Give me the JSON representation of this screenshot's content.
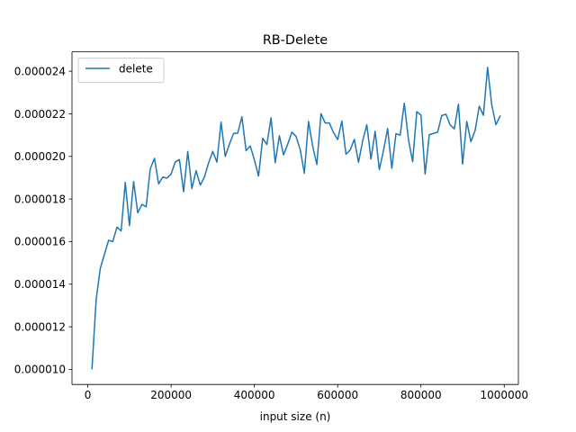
{
  "chart_data": {
    "type": "line",
    "title": "RB-Delete",
    "xlabel": "input size (n)",
    "ylabel": "",
    "xlim": [
      -38000,
      1034000
    ],
    "ylim": [
      9.29e-06,
      2.491e-05
    ],
    "x_ticks": [
      0,
      200000,
      400000,
      600000,
      800000,
      1000000
    ],
    "x_tick_labels": [
      "0",
      "200000",
      "400000",
      "600000",
      "800000",
      "1000000"
    ],
    "y_ticks": [
      1e-05,
      1.2e-05,
      1.4e-05,
      1.6e-05,
      1.8e-05,
      2e-05,
      2.2e-05,
      2.4e-05
    ],
    "y_tick_labels": [
      "0.000010",
      "0.000012",
      "0.000014",
      "0.000016",
      "0.000018",
      "0.000020",
      "0.000022",
      "0.000024"
    ],
    "grid": false,
    "legend_position": "upper left",
    "series": [
      {
        "name": "delete",
        "color": "#1f77b4",
        "x": [
          10000,
          20000,
          30000,
          40000,
          50000,
          60000,
          70000,
          80000,
          90000,
          100000,
          110000,
          120000,
          130000,
          140000,
          150000,
          160000,
          170000,
          180000,
          190000,
          200000,
          210000,
          220000,
          230000,
          240000,
          250000,
          260000,
          270000,
          280000,
          290000,
          300000,
          310000,
          320000,
          330000,
          340000,
          350000,
          360000,
          370000,
          380000,
          390000,
          400000,
          410000,
          420000,
          430000,
          440000,
          450000,
          460000,
          470000,
          480000,
          490000,
          500000,
          510000,
          520000,
          530000,
          540000,
          550000,
          560000,
          570000,
          580000,
          590000,
          600000,
          610000,
          620000,
          630000,
          640000,
          650000,
          660000,
          670000,
          680000,
          690000,
          700000,
          710000,
          720000,
          730000,
          740000,
          750000,
          760000,
          770000,
          780000,
          790000,
          800000,
          810000,
          820000,
          830000,
          840000,
          850000,
          860000,
          870000,
          880000,
          890000,
          900000,
          910000,
          920000,
          930000,
          940000,
          950000,
          960000,
          970000,
          980000,
          990000
        ],
        "y": [
          1.003e-05,
          1.327e-05,
          1.475e-05,
          1.541e-05,
          1.606e-05,
          1.6e-05,
          1.668e-05,
          1.65e-05,
          1.878e-05,
          1.675e-05,
          1.882e-05,
          1.735e-05,
          1.775e-05,
          1.763e-05,
          1.942e-05,
          1.991e-05,
          1.871e-05,
          1.903e-05,
          1.898e-05,
          1.917e-05,
          1.974e-05,
          1.985e-05,
          1.834e-05,
          2.023e-05,
          1.849e-05,
          1.933e-05,
          1.865e-05,
          1.903e-05,
          1.969e-05,
          2.024e-05,
          1.973e-05,
          2.161e-05,
          2e-05,
          2.057e-05,
          2.108e-05,
          2.109e-05,
          2.186e-05,
          2.027e-05,
          2.049e-05,
          1.984e-05,
          1.908e-05,
          2.085e-05,
          2.056e-05,
          2.181e-05,
          1.97e-05,
          2.097e-05,
          2.007e-05,
          2.057e-05,
          2.114e-05,
          2.094e-05,
          2.032e-05,
          1.921e-05,
          2.164e-05,
          2.048e-05,
          1.962e-05,
          2.201e-05,
          2.157e-05,
          2.157e-05,
          2.112e-05,
          2.079e-05,
          2.166e-05,
          2.01e-05,
          2.03e-05,
          2.08e-05,
          1.972e-05,
          2.073e-05,
          2.149e-05,
          1.988e-05,
          2.118e-05,
          1.938e-05,
          2.027e-05,
          2.131e-05,
          1.944e-05,
          2.107e-05,
          2.099e-05,
          2.25e-05,
          2.079e-05,
          1.975e-05,
          2.21e-05,
          2.194e-05,
          1.917e-05,
          2.102e-05,
          2.108e-05,
          2.114e-05,
          2.192e-05,
          2.198e-05,
          2.148e-05,
          2.129e-05,
          2.245e-05,
          1.964e-05,
          2.164e-05,
          2.069e-05,
          2.121e-05,
          2.236e-05,
          2.193e-05,
          2.418e-05,
          2.241e-05,
          2.149e-05,
          2.189e-05
        ]
      }
    ]
  }
}
